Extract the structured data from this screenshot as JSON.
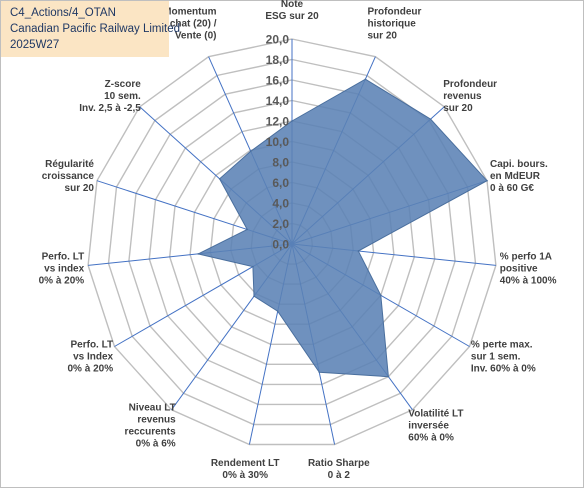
{
  "header": {
    "line1": "C4_Actions/4_OTAN",
    "line2": "Canadian Pacific Railway Limited",
    "line3": "2025W27"
  },
  "colors": {
    "area_fill": "#5b82b5",
    "area_stroke": "#4a6f9e",
    "grid": "#bfbfbf",
    "spoke": "#4472c4",
    "title_bg": "#fbe5c4"
  },
  "chart_data": {
    "type": "radar",
    "rlim": [
      0,
      20
    ],
    "ticks": [
      "0,0",
      "2,0",
      "4,0",
      "6,0",
      "8,0",
      "10,0",
      "12,0",
      "14,0",
      "16,0",
      "18,0",
      "20,0"
    ],
    "axes": [
      {
        "label": [
          "Note",
          "ESG sur 20"
        ],
        "value": 12.0
      },
      {
        "label": [
          "Profondeur",
          "historique",
          "sur 20"
        ],
        "value": 17.6
      },
      {
        "label": [
          "Profondeur",
          "revenus",
          "sur 20"
        ],
        "value": 18.2
      },
      {
        "label": [
          "Capi. bours.",
          "en MdEUR",
          "0 à 60 G€"
        ],
        "value": 20.0
      },
      {
        "label": [
          "% perfo 1A",
          "positive",
          "40% à 100%"
        ],
        "value": 6.5
      },
      {
        "label": [
          "% perte max.",
          "sur 1 sem.",
          "Inv. 60% à 0%"
        ],
        "value": 10.0
      },
      {
        "label": [
          "Volatilité LT",
          "inversée",
          "60% à 0%"
        ],
        "value": 16.0
      },
      {
        "label": [
          "Ratio Sharpe",
          "0 à 2"
        ],
        "value": 12.8
      },
      {
        "label": [
          "Rendement LT",
          "0% à 30%"
        ],
        "value": 6.7
      },
      {
        "label": [
          "Niveau LT",
          "revenus",
          "reccurents",
          "0% à 6%"
        ],
        "value": 6.3
      },
      {
        "label": [
          "Perfo. LT",
          "vs Index",
          "0% à 20%"
        ],
        "value": 4.4
      },
      {
        "label": [
          "Perfo. LT",
          "vs index",
          "0% à 20%"
        ],
        "value": 9.2
      },
      {
        "label": [
          "Régularité",
          "croissance",
          "sur 20"
        ],
        "value": 4.6
      },
      {
        "label": [
          "Z-score",
          "10 sem.",
          "Inv. 2,5 à -2,5"
        ],
        "value": 9.5
      },
      {
        "label": [
          "Momentum",
          "Achat (20) /",
          "Vente (0)"
        ],
        "value": 9.9
      }
    ]
  }
}
